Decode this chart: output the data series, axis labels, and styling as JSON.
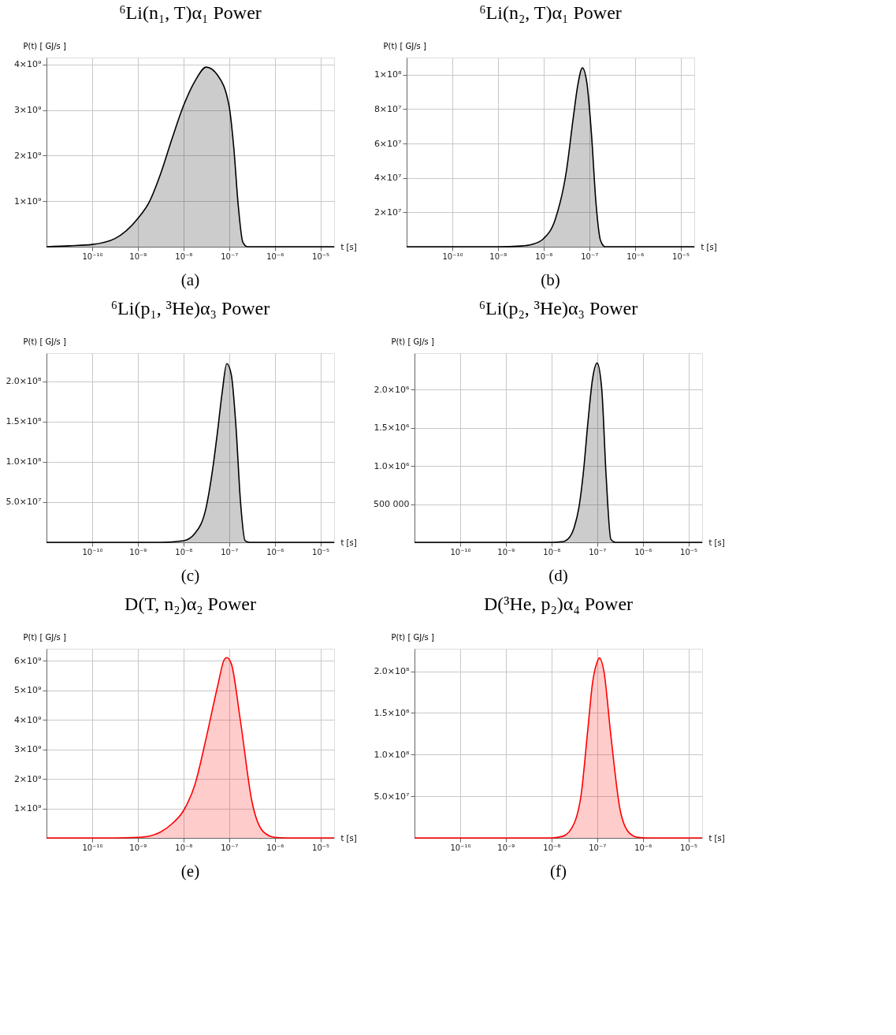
{
  "chart_data": [
    {
      "type": "area",
      "title": "⁶Li(n₁, T)α₁  Power",
      "xlabel": "t [s]",
      "ylabel": "P(t) [ GJ/s ]",
      "annotations": [
        "(a)"
      ],
      "log": "x",
      "grid": true,
      "xlim": [
        1e-11,
        2e-05
      ],
      "xticks": [
        {
          "value": 1e-10,
          "label": "10⁻¹⁰"
        },
        {
          "value": 1e-09,
          "label": "10⁻⁹"
        },
        {
          "value": 1e-08,
          "label": "10⁻⁸"
        },
        {
          "value": 1e-07,
          "label": "10⁻⁷"
        },
        {
          "value": 1e-06,
          "label": "10⁻⁶"
        },
        {
          "value": 1e-05,
          "label": "10⁻⁵"
        }
      ],
      "ylim": [
        0,
        4150000000.0
      ],
      "yticks": [
        {
          "value": 1000000000.0,
          "label": "1×10⁹"
        },
        {
          "value": 2000000000.0,
          "label": "2×10⁹"
        },
        {
          "value": 3000000000.0,
          "label": "3×10⁹"
        },
        {
          "value": 4000000000.0,
          "label": "4×10⁹"
        }
      ],
      "x": [
        1e-11,
        3.16e-11,
        1e-10,
        3.16e-10,
        1e-09,
        1.78e-09,
        3.16e-09,
        5.62e-09,
        1e-08,
        1.78e-08,
        3.16e-08,
        5.62e-08,
        1e-07,
        1.26e-07,
        1.58e-07,
        2e-07,
        2.51e-07,
        2e-05
      ],
      "series": [
        {
          "color": "#000000",
          "values": [
            0,
            20000000.0,
            50000000.0,
            180000000.0,
            620000000.0,
            980000000.0,
            1600000000.0,
            2370000000.0,
            3090000000.0,
            3630000000.0,
            3940000000.0,
            3760000000.0,
            3090000000.0,
            2200000000.0,
            930000000.0,
            100000000.0,
            0,
            0
          ]
        }
      ]
    },
    {
      "type": "area",
      "title": "⁶Li(n₂, T)α₁  Power",
      "xlabel": "t [s]",
      "ylabel": "P(t) [ GJ/s ]",
      "annotations": [
        "(b)"
      ],
      "log": "x",
      "grid": true,
      "xlim": [
        1e-11,
        2e-05
      ],
      "xticks": [
        {
          "value": 1e-10,
          "label": "10⁻¹⁰"
        },
        {
          "value": 1e-09,
          "label": "10⁻⁹"
        },
        {
          "value": 1e-08,
          "label": "10⁻⁸"
        },
        {
          "value": 1e-07,
          "label": "10⁻⁷"
        },
        {
          "value": 1e-06,
          "label": "10⁻⁶"
        },
        {
          "value": 1e-05,
          "label": "10⁻⁵"
        }
      ],
      "ylim": [
        0,
        110000000.0
      ],
      "yticks": [
        {
          "value": 20000000.0,
          "label": "2×10⁷"
        },
        {
          "value": 40000000.0,
          "label": "4×10⁷"
        },
        {
          "value": 60000000.0,
          "label": "6×10⁷"
        },
        {
          "value": 80000000.0,
          "label": "8×10⁷"
        },
        {
          "value": 100000000.0,
          "label": "1×10⁸"
        }
      ],
      "x": [
        1e-11,
        1e-09,
        3.16e-09,
        5.62e-09,
        1e-08,
        1.78e-08,
        3.16e-08,
        4.47e-08,
        5.62e-08,
        7.08e-08,
        8.91e-08,
        1.12e-07,
        1.41e-07,
        1.78e-07,
        2.24e-07,
        2e-05
      ],
      "series": [
        {
          "color": "#000000",
          "values": [
            0,
            0,
            400000.0,
            1400000.0,
            4700000.0,
            15500000.0,
            44000000.0,
            75000000.0,
            94000000.0,
            104000000.0,
            95000000.0,
            65500000.0,
            25000000.0,
            3400000.0,
            0,
            0
          ]
        }
      ]
    },
    {
      "type": "area",
      "title": "⁶Li(p₁, ³He)α₃  Power",
      "xlabel": "t [s]",
      "ylabel": "P(t) [ GJ/s ]",
      "annotations": [
        "(c)"
      ],
      "log": "x",
      "grid": true,
      "xlim": [
        1e-11,
        2e-05
      ],
      "xticks": [
        {
          "value": 1e-10,
          "label": "10⁻¹⁰"
        },
        {
          "value": 1e-09,
          "label": "10⁻⁹"
        },
        {
          "value": 1e-08,
          "label": "10⁻⁸"
        },
        {
          "value": 1e-07,
          "label": "10⁻⁷"
        },
        {
          "value": 1e-06,
          "label": "10⁻⁶"
        },
        {
          "value": 1e-05,
          "label": "10⁻⁵"
        }
      ],
      "ylim": [
        0,
        235000000.0
      ],
      "yticks": [
        {
          "value": 50000000.0,
          "label": "5.0×10⁷"
        },
        {
          "value": 100000000.0,
          "label": "1.0×10⁸"
        },
        {
          "value": 150000000.0,
          "label": "1.5×10⁸"
        },
        {
          "value": 200000000.0,
          "label": "2.0×10⁸"
        }
      ],
      "x": [
        1e-11,
        3.16e-09,
        1e-08,
        1.78e-08,
        3.16e-08,
        4.47e-08,
        5.62e-08,
        7.08e-08,
        8.91e-08,
        1.12e-07,
        1.41e-07,
        1.78e-07,
        2.24e-07,
        2.82e-07,
        2e-05
      ],
      "series": [
        {
          "color": "#000000",
          "values": [
            0,
            0,
            2000000.0,
            11000000.0,
            44000000.0,
            95000000.0,
            139000000.0,
            187000000.0,
            222000000.0,
            208000000.0,
            145000000.0,
            50000000.0,
            2000000.0,
            0,
            0
          ]
        }
      ]
    },
    {
      "type": "area",
      "title": "⁶Li(p₂, ³He)α₃  Power",
      "xlabel": "t [s]",
      "ylabel": "P(t) [ GJ/s ]",
      "annotations": [
        "(d)"
      ],
      "log": "x",
      "grid": true,
      "xlim": [
        1e-11,
        2e-05
      ],
      "xticks": [
        {
          "value": 1e-10,
          "label": "10⁻¹⁰"
        },
        {
          "value": 1e-09,
          "label": "10⁻⁹"
        },
        {
          "value": 1e-08,
          "label": "10⁻⁸"
        },
        {
          "value": 1e-07,
          "label": "10⁻⁷"
        },
        {
          "value": 1e-06,
          "label": "10⁻⁶"
        },
        {
          "value": 1e-05,
          "label": "10⁻⁵"
        }
      ],
      "ylim": [
        0,
        2480000.0
      ],
      "yticks": [
        {
          "value": 500000,
          "label": "500 000"
        },
        {
          "value": 1000000.0,
          "label": "1.0×10⁶"
        },
        {
          "value": 1500000.0,
          "label": "1.5×10⁶"
        },
        {
          "value": 2000000.0,
          "label": "2.0×10⁶"
        }
      ],
      "x": [
        1e-11,
        1e-08,
        1.78e-08,
        2.51e-08,
        3.16e-08,
        3.98e-08,
        5.01e-08,
        6.31e-08,
        7.94e-08,
        1e-07,
        1.26e-07,
        1.58e-07,
        2e-07,
        2.51e-07,
        2e-05
      ],
      "series": [
        {
          "color": "#000000",
          "values": [
            0,
            0,
            10000.0,
            70000.0,
            200000.0,
            450000.0,
            920000.0,
            1580000.0,
            2140000.0,
            2350000.0,
            2020000.0,
            860000.0,
            40000.0,
            0,
            0
          ]
        }
      ]
    },
    {
      "type": "area",
      "title": "D(T, n₂)α₂  Power",
      "xlabel": "t [s]",
      "ylabel": "P(t) [ GJ/s ]",
      "annotations": [
        "(e)"
      ],
      "log": "x",
      "grid": true,
      "xlim": [
        1e-11,
        2e-05
      ],
      "xticks": [
        {
          "value": 1e-10,
          "label": "10⁻¹⁰"
        },
        {
          "value": 1e-09,
          "label": "10⁻⁹"
        },
        {
          "value": 1e-08,
          "label": "10⁻⁸"
        },
        {
          "value": 1e-07,
          "label": "10⁻⁷"
        },
        {
          "value": 1e-06,
          "label": "10⁻⁶"
        },
        {
          "value": 1e-05,
          "label": "10⁻⁵"
        }
      ],
      "ylim": [
        0,
        6400000000.0
      ],
      "yticks": [
        {
          "value": 1000000000.0,
          "label": "1×10⁹"
        },
        {
          "value": 2000000000.0,
          "label": "2×10⁹"
        },
        {
          "value": 3000000000.0,
          "label": "3×10⁹"
        },
        {
          "value": 4000000000.0,
          "label": "4×10⁹"
        },
        {
          "value": 5000000000.0,
          "label": "5×10⁹"
        },
        {
          "value": 6000000000.0,
          "label": "6×10⁹"
        }
      ],
      "x": [
        1e-11,
        3.16e-10,
        1e-09,
        1.78e-09,
        3.16e-09,
        5.62e-09,
        1e-08,
        1.78e-08,
        3.16e-08,
        5.62e-08,
        7.94e-08,
        8.91e-08,
        1.12e-07,
        1.78e-07,
        3.16e-07,
        5.62e-07,
        1e-06,
        1.78e-06,
        2e-05
      ],
      "series": [
        {
          "color": "#ff0000",
          "values": [
            0,
            0,
            20000000.0,
            60000000.0,
            200000000.0,
            480000000.0,
            920000000.0,
            1800000000.0,
            3390000000.0,
            5140000000.0,
            6050000000.0,
            6100000000.0,
            5890000000.0,
            3940000000.0,
            1240000000.0,
            210000000.0,
            20000000.0,
            0,
            0
          ]
        }
      ]
    },
    {
      "type": "area",
      "title": "D(³He, p₂)α₄ Power",
      "xlabel": "t [s]",
      "ylabel": "P(t) [ GJ/s ]",
      "annotations": [
        "(f)"
      ],
      "log": "x",
      "grid": true,
      "xlim": [
        1e-11,
        2e-05
      ],
      "xticks": [
        {
          "value": 1e-10,
          "label": "10⁻¹⁰"
        },
        {
          "value": 1e-09,
          "label": "10⁻⁹"
        },
        {
          "value": 1e-08,
          "label": "10⁻⁸"
        },
        {
          "value": 1e-07,
          "label": "10⁻⁷"
        },
        {
          "value": 1e-06,
          "label": "10⁻⁶"
        },
        {
          "value": 1e-05,
          "label": "10⁻⁵"
        }
      ],
      "ylim": [
        0,
        227000000.0
      ],
      "yticks": [
        {
          "value": 50000000.0,
          "label": "5.0×10⁷"
        },
        {
          "value": 100000000.0,
          "label": "1.0×10⁸"
        },
        {
          "value": 150000000.0,
          "label": "1.5×10⁸"
        },
        {
          "value": 200000000.0,
          "label": "2.0×10⁸"
        }
      ],
      "x": [
        1e-11,
        1e-08,
        1.78e-08,
        3.16e-08,
        4.47e-08,
        6.31e-08,
        7.94e-08,
        1e-07,
        1.12e-07,
        1.41e-07,
        2e-07,
        3.16e-07,
        5.01e-07,
        7.94e-07,
        1.26e-06,
        2e-05
      ],
      "series": [
        {
          "color": "#ff0000",
          "values": [
            0,
            0,
            2000000.0,
            17700000.0,
            52000000.0,
            132000000.0,
            186000000.0,
            211000000.0,
            216000000.0,
            200000000.0,
            123000000.0,
            35000000.0,
            6300000.0,
            600000.0,
            0,
            0
          ]
        }
      ]
    }
  ]
}
